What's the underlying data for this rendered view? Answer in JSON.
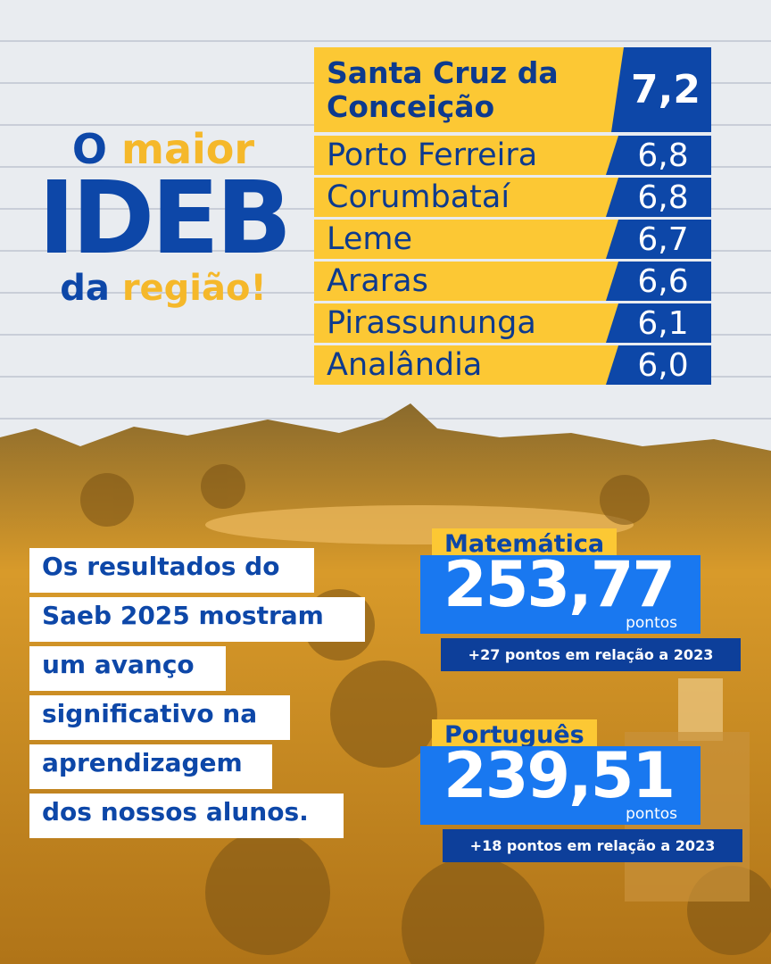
{
  "headline": {
    "o": "O",
    "maior": "maior",
    "ideb": "IDEB",
    "da": "da",
    "regiao": "região!"
  },
  "ranking": [
    {
      "city": "Santa Cruz da Conceição",
      "score": "7,2"
    },
    {
      "city": "Porto Ferreira",
      "score": "6,8"
    },
    {
      "city": "Corumbataí",
      "score": "6,8"
    },
    {
      "city": "Leme",
      "score": "6,7"
    },
    {
      "city": "Araras",
      "score": "6,6"
    },
    {
      "city": "Pirassununga",
      "score": "6,1"
    },
    {
      "city": "Analândia",
      "score": "6,0"
    }
  ],
  "message": [
    "Os resultados do",
    "Saeb 2025 mostram",
    "um avanço",
    "significativo na",
    "aprendizagem",
    "dos nossos alunos."
  ],
  "highlights": [
    {
      "subject": "Matemática",
      "score": "253,77",
      "unit": "pontos",
      "change": "+27 pontos em relação a 2023"
    },
    {
      "subject": "Português",
      "score": "239,51",
      "unit": "pontos",
      "change": "+18 pontos em relação a 2023"
    }
  ]
}
